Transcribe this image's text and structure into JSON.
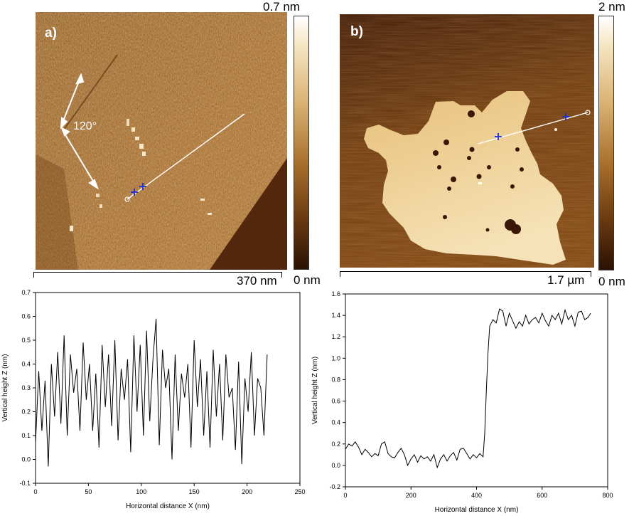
{
  "images": {
    "a": {
      "panel_label": "a)",
      "colorbar_max": "0.7 nm",
      "colorbar_min": "0 nm",
      "scale_bar": "370 nm",
      "angle_label": "120°"
    },
    "b": {
      "panel_label": "b)",
      "colorbar_max": "2 nm",
      "colorbar_min": "0 nm",
      "scale_bar": "1.7 µm"
    }
  },
  "colors": {
    "afm_dark": "#2a1204",
    "afm_mid": "#8a4a12",
    "afm_light": "#f2d8a0",
    "profile_line": "#ffffff",
    "cursor_marker": "#1a2fd6",
    "plot_line": "#000000"
  },
  "chart_data": [
    {
      "type": "line",
      "title": "",
      "xlabel": "Horizontal distance X (nm)",
      "ylabel": "Vertical height Z (nm)",
      "xlim": [
        0,
        250
      ],
      "ylim": [
        -0.1,
        0.7
      ],
      "xticks": [
        0,
        50,
        100,
        150,
        200,
        250
      ],
      "xtick_labels": [
        "0",
        "50",
        "100",
        "150",
        "200",
        "250"
      ],
      "yticks": [
        -0.1,
        0.0,
        0.1,
        0.2,
        0.3,
        0.4,
        0.5,
        0.6,
        0.7
      ],
      "ytick_labels": [
        "-0.1",
        "0.0",
        "0.1",
        "0.2",
        "0.3",
        "0.4",
        "0.5",
        "0.6",
        "0.7"
      ],
      "grid": false,
      "series": [
        {
          "x": [
            0,
            3,
            6,
            9,
            12,
            15,
            18,
            21,
            24,
            27,
            30,
            33,
            36,
            39,
            42,
            45,
            48,
            51,
            54,
            57,
            60,
            63,
            66,
            69,
            72,
            75,
            78,
            81,
            84,
            87,
            90,
            93,
            96,
            99,
            102,
            105,
            108,
            111,
            114,
            117,
            120,
            123,
            126,
            129,
            132,
            135,
            138,
            141,
            144,
            147,
            150,
            153,
            156,
            159,
            162,
            165,
            168,
            171,
            174,
            177,
            180,
            183,
            186,
            189,
            192,
            195,
            198,
            201,
            204,
            207,
            210,
            213,
            216,
            219
          ],
          "y": [
            0.07,
            0.37,
            0.12,
            0.33,
            -0.03,
            0.4,
            0.18,
            0.45,
            0.15,
            0.52,
            0.1,
            0.44,
            0.28,
            0.38,
            0.12,
            0.49,
            0.25,
            0.4,
            0.12,
            0.36,
            0.05,
            0.48,
            0.22,
            0.44,
            0.14,
            0.5,
            0.08,
            0.38,
            0.25,
            0.42,
            0.03,
            0.52,
            0.2,
            0.48,
            0.1,
            0.54,
            0.16,
            0.42,
            0.59,
            0.06,
            0.46,
            0.3,
            0.38,
            0.0,
            0.44,
            0.12,
            0.36,
            0.26,
            0.4,
            0.05,
            0.5,
            0.22,
            0.42,
            0.1,
            0.37,
            0.05,
            0.46,
            0.18,
            0.4,
            0.08,
            0.44,
            0.26,
            0.3,
            0.04,
            0.41,
            -0.02,
            0.34,
            0.2,
            0.45,
            0.1,
            0.34,
            0.3,
            0.1,
            0.44
          ]
        }
      ]
    },
    {
      "type": "line",
      "title": "",
      "xlabel": "Horizontal distance X (nm)",
      "ylabel": "Vertical height Z (nm)",
      "xlim": [
        0,
        800
      ],
      "ylim": [
        -0.2,
        1.6
      ],
      "xticks": [
        0,
        200,
        400,
        600,
        800
      ],
      "xtick_labels": [
        "0",
        "200",
        "400",
        "600",
        "800"
      ],
      "yticks": [
        -0.2,
        0.0,
        0.2,
        0.4,
        0.6,
        0.8,
        1.0,
        1.2,
        1.4,
        1.6
      ],
      "ytick_labels": [
        "-0.2",
        "0.0",
        "0.2",
        "0.4",
        "0.6",
        "0.8",
        "1.0",
        "1.2",
        "1.4",
        "1.6"
      ],
      "grid": false,
      "series": [
        {
          "x": [
            0,
            10,
            20,
            30,
            40,
            50,
            60,
            70,
            80,
            90,
            100,
            110,
            120,
            130,
            140,
            150,
            160,
            170,
            180,
            190,
            200,
            210,
            220,
            230,
            240,
            250,
            260,
            270,
            280,
            290,
            300,
            310,
            320,
            330,
            340,
            350,
            360,
            370,
            380,
            390,
            400,
            410,
            420,
            425,
            430,
            435,
            440,
            450,
            460,
            470,
            480,
            490,
            500,
            510,
            520,
            530,
            540,
            550,
            560,
            570,
            580,
            590,
            600,
            610,
            620,
            630,
            640,
            650,
            660,
            670,
            680,
            690,
            700,
            710,
            720,
            730,
            740,
            748
          ],
          "y": [
            0.15,
            0.2,
            0.18,
            0.22,
            0.17,
            0.1,
            0.15,
            0.12,
            0.08,
            0.11,
            0.09,
            0.2,
            0.22,
            0.11,
            0.08,
            0.07,
            0.12,
            0.16,
            0.1,
            0.0,
            0.06,
            0.1,
            0.03,
            0.09,
            0.06,
            0.08,
            0.04,
            0.1,
            -0.02,
            0.06,
            0.1,
            0.04,
            0.09,
            0.12,
            0.05,
            0.15,
            0.16,
            0.11,
            0.06,
            0.1,
            0.07,
            0.11,
            0.08,
            0.3,
            0.7,
            1.05,
            1.3,
            1.36,
            1.33,
            1.46,
            1.44,
            1.3,
            1.42,
            1.35,
            1.28,
            1.34,
            1.3,
            1.4,
            1.32,
            1.36,
            1.38,
            1.33,
            1.42,
            1.35,
            1.3,
            1.4,
            1.36,
            1.42,
            1.32,
            1.45,
            1.36,
            1.4,
            1.3,
            1.43,
            1.44,
            1.36,
            1.38,
            1.42
          ]
        }
      ]
    }
  ]
}
